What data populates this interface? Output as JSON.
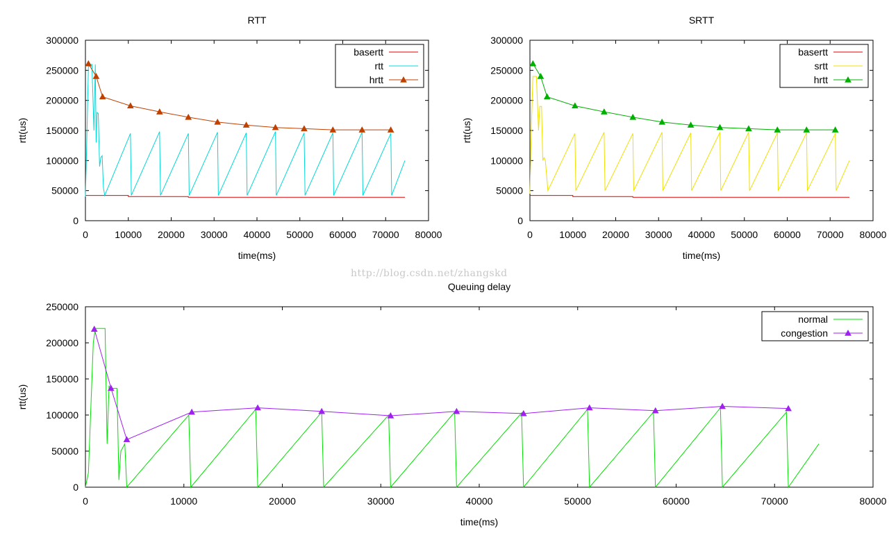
{
  "watermark": "http://blog.csdn.net/zhangskd",
  "chart_data": [
    {
      "type": "line",
      "title": "RTT",
      "xlabel": "time(ms)",
      "ylabel": "rtt(us)",
      "xlim": [
        0,
        80000
      ],
      "ylim": [
        0,
        300000
      ],
      "xticks": [
        0,
        10000,
        20000,
        30000,
        40000,
        50000,
        60000,
        70000,
        80000
      ],
      "yticks": [
        0,
        50000,
        100000,
        150000,
        200000,
        250000,
        300000
      ],
      "legend_position": "top-right",
      "series": [
        {
          "name": "basertt",
          "color": "#e00000",
          "marker": "none",
          "x": [
            0,
            10000,
            10000,
            24000,
            24000,
            74500
          ],
          "y": [
            42000,
            42000,
            40000,
            40000,
            39000,
            39000
          ]
        },
        {
          "name": "rtt",
          "color": "#00d8d8",
          "marker": "none",
          "x": [
            0,
            300,
            700,
            1000,
            1500,
            2000,
            2300,
            2500,
            2700,
            3000,
            3300,
            3600,
            3900,
            4200,
            4500,
            10500,
            10700,
            17300,
            17500,
            24000,
            24200,
            30800,
            31000,
            37500,
            37700,
            44300,
            44500,
            51000,
            51200,
            57700,
            57900,
            64500,
            64700,
            71200,
            71400,
            74500
          ],
          "y": [
            40000,
            130000,
            255000,
            260000,
            260000,
            150000,
            260000,
            130000,
            180000,
            178000,
            90000,
            105000,
            108000,
            55000,
            42000,
            145000,
            42000,
            148000,
            42000,
            145000,
            42000,
            147000,
            42000,
            146000,
            42000,
            148000,
            42000,
            146000,
            42000,
            146000,
            42000,
            147000,
            42000,
            145000,
            42000,
            100000
          ]
        },
        {
          "name": "hrtt",
          "color": "#c04000",
          "marker": "triangle",
          "x": [
            700,
            2500,
            4000,
            10500,
            17300,
            24000,
            30800,
            37500,
            44300,
            51000,
            57700,
            64500,
            71200
          ],
          "y": [
            261000,
            240000,
            206000,
            191000,
            181000,
            172000,
            164000,
            159000,
            155000,
            153000,
            151000,
            151000,
            151000
          ]
        }
      ]
    },
    {
      "type": "line",
      "title": "SRTT",
      "xlabel": "time(ms)",
      "ylabel": "rtt(us)",
      "xlim": [
        0,
        80000
      ],
      "ylim": [
        0,
        300000
      ],
      "xticks": [
        0,
        10000,
        20000,
        30000,
        40000,
        50000,
        60000,
        70000,
        80000
      ],
      "yticks": [
        0,
        50000,
        100000,
        150000,
        200000,
        250000,
        300000
      ],
      "legend_position": "top-right",
      "series": [
        {
          "name": "basertt",
          "color": "#e00000",
          "marker": "none",
          "x": [
            0,
            10000,
            10000,
            24000,
            24000,
            74500
          ],
          "y": [
            42000,
            42000,
            40000,
            40000,
            39000,
            39000
          ]
        },
        {
          "name": "srtt",
          "color": "#f0e000",
          "marker": "none",
          "x": [
            0,
            300,
            700,
            1000,
            1500,
            2000,
            2300,
            2700,
            3000,
            3300,
            3600,
            4200,
            10500,
            10700,
            17300,
            17500,
            24000,
            24200,
            30800,
            31000,
            37500,
            37700,
            44300,
            44500,
            51000,
            51200,
            57700,
            57900,
            64500,
            64700,
            71200,
            71400,
            74500
          ],
          "y": [
            45000,
            150000,
            240000,
            240000,
            240000,
            150000,
            190000,
            190000,
            100000,
            105000,
            100000,
            50000,
            145000,
            50000,
            147000,
            50000,
            145000,
            50000,
            147000,
            50000,
            146000,
            50000,
            147000,
            50000,
            147000,
            50000,
            146000,
            50000,
            146000,
            50000,
            145000,
            50000,
            100000
          ]
        },
        {
          "name": "hrtt",
          "color": "#00b000",
          "marker": "triangle",
          "x": [
            700,
            2500,
            4000,
            10500,
            17300,
            24000,
            30800,
            37500,
            44300,
            51000,
            57700,
            64500,
            71200
          ],
          "y": [
            261000,
            240000,
            206000,
            191000,
            181000,
            172000,
            164000,
            159000,
            155000,
            153000,
            151000,
            151000,
            151000
          ]
        }
      ]
    },
    {
      "type": "line",
      "title": "Queuing delay",
      "xlabel": "time(ms)",
      "ylabel": "rtt(us)",
      "xlim": [
        0,
        80000
      ],
      "ylim": [
        0,
        250000
      ],
      "xticks": [
        0,
        10000,
        20000,
        30000,
        40000,
        50000,
        60000,
        70000,
        80000
      ],
      "yticks": [
        0,
        50000,
        100000,
        150000,
        200000,
        250000
      ],
      "legend_position": "top-right",
      "series": [
        {
          "name": "normal",
          "color": "#00e000",
          "marker": "none",
          "x": [
            0,
            300,
            800,
            1000,
            1500,
            2000,
            2200,
            2400,
            2600,
            3200,
            3400,
            3600,
            4000,
            4200,
            10500,
            10700,
            17300,
            17500,
            24000,
            24200,
            30800,
            31000,
            37500,
            37700,
            44300,
            44500,
            51000,
            51200,
            57700,
            57900,
            64500,
            64700,
            71200,
            71400,
            74500
          ],
          "y": [
            0,
            20000,
            200000,
            220000,
            220000,
            220000,
            60000,
            140000,
            137000,
            137000,
            10000,
            50000,
            60000,
            0,
            100000,
            0,
            108000,
            0,
            104000,
            0,
            100000,
            0,
            104000,
            0,
            103000,
            0,
            108000,
            0,
            104000,
            0,
            110000,
            0,
            104000,
            0,
            60000
          ]
        },
        {
          "name": "congestion",
          "color": "#a020f0",
          "marker": "triangle",
          "x": [
            900,
            2600,
            4200,
            10800,
            17500,
            24000,
            31000,
            37700,
            44500,
            51200,
            57900,
            64700,
            71400
          ],
          "y": [
            219000,
            137000,
            66000,
            104000,
            110000,
            105000,
            99000,
            105000,
            102000,
            110000,
            106000,
            112000,
            109000
          ]
        }
      ]
    }
  ]
}
